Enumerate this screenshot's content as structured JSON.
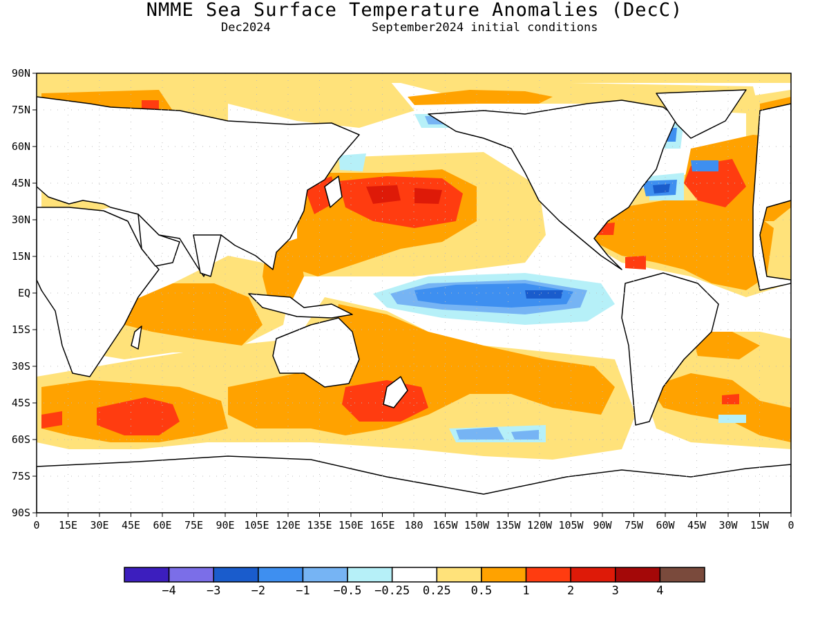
{
  "title": "NMME Sea Surface Temperature Anomalies (DecC)",
  "subtitle_left": "Dec2024",
  "subtitle_right": "September2024 initial conditions",
  "lat_labels": [
    "90N",
    "75N",
    "60N",
    "45N",
    "30N",
    "15N",
    "EQ",
    "15S",
    "30S",
    "45S",
    "60S",
    "75S",
    "90S"
  ],
  "lon_labels": [
    "0",
    "15E",
    "30E",
    "45E",
    "60E",
    "75E",
    "90E",
    "105E",
    "120E",
    "135E",
    "150E",
    "165E",
    "180",
    "165W",
    "150W",
    "135W",
    "120W",
    "105W",
    "90W",
    "75W",
    "60W",
    "45W",
    "30W",
    "15W",
    "0"
  ],
  "colorbar": {
    "labels": [
      "−4",
      "−3",
      "−2",
      "−1",
      "−0.5",
      "−0.25",
      "0.25",
      "0.5",
      "1",
      "2",
      "3",
      "4"
    ],
    "colors": [
      "#3c1ebe",
      "#7b6ee8",
      "#1a5ccc",
      "#3e8ff0",
      "#76b4f4",
      "#b6f0f8",
      "#ffffff",
      "#ffe27a",
      "#ffa200",
      "#ff3c10",
      "#de1a08",
      "#a40808",
      "#7a4a3c"
    ]
  },
  "colors": {
    "ocean_neutral": "#ffffff",
    "land_outline": "#000000",
    "grid": "#bbbbbb"
  }
}
